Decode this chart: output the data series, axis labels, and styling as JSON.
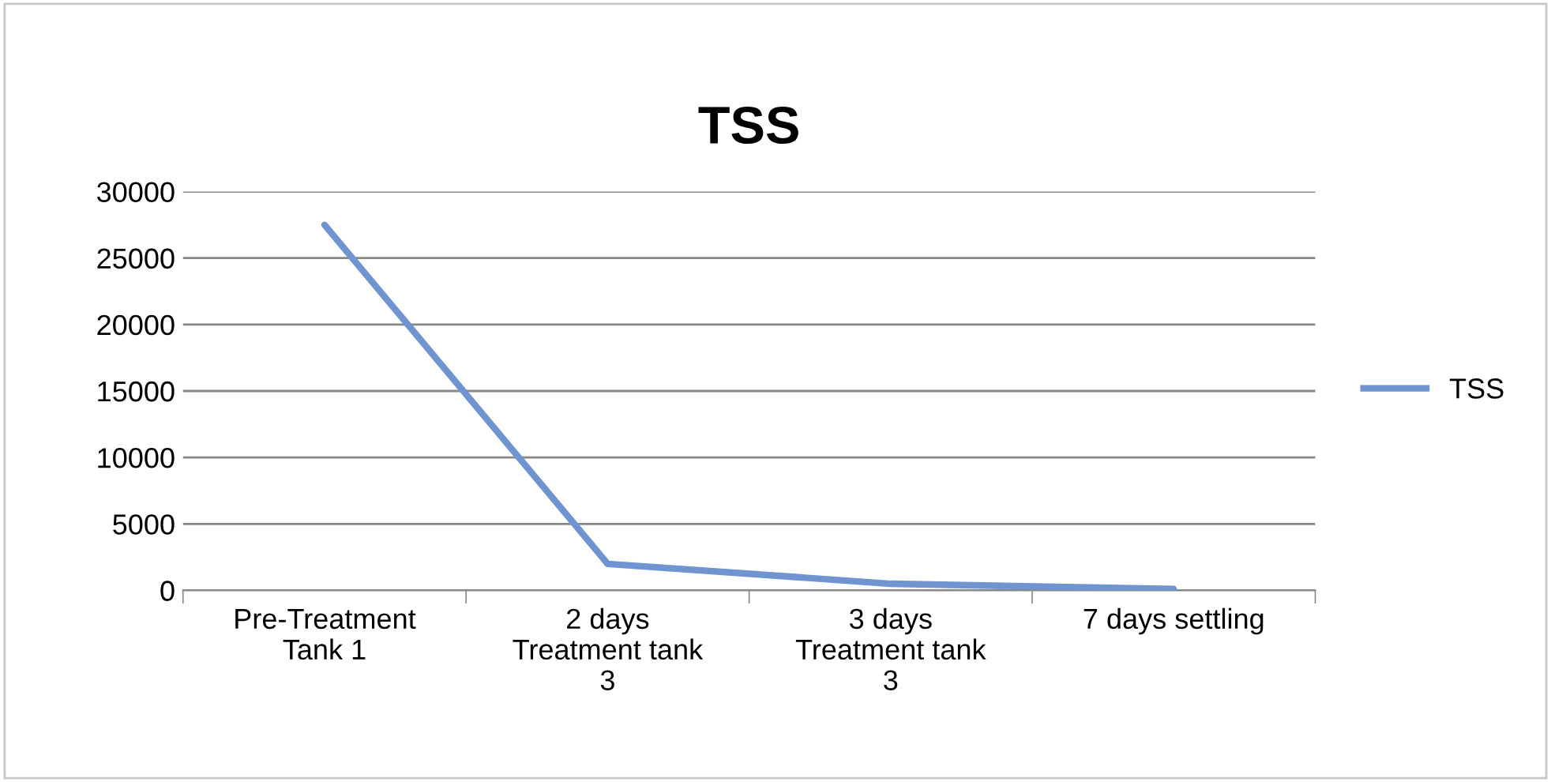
{
  "chart_data": {
    "type": "line",
    "title": "TSS",
    "categories": [
      "Pre-Treatment\nTank 1",
      "2 days\nTreatment tank\n3",
      "3 days\nTreatment tank\n3",
      "7 days settling"
    ],
    "series": [
      {
        "name": "TSS",
        "color": "#6f94d0",
        "values": [
          27500,
          2000,
          500,
          100
        ]
      }
    ],
    "ylim": [
      0,
      30000
    ],
    "yticks": [
      0,
      5000,
      10000,
      15000,
      20000,
      25000,
      30000
    ],
    "grid": "y",
    "legend": "right",
    "marker": "none",
    "line_style": "solid"
  }
}
